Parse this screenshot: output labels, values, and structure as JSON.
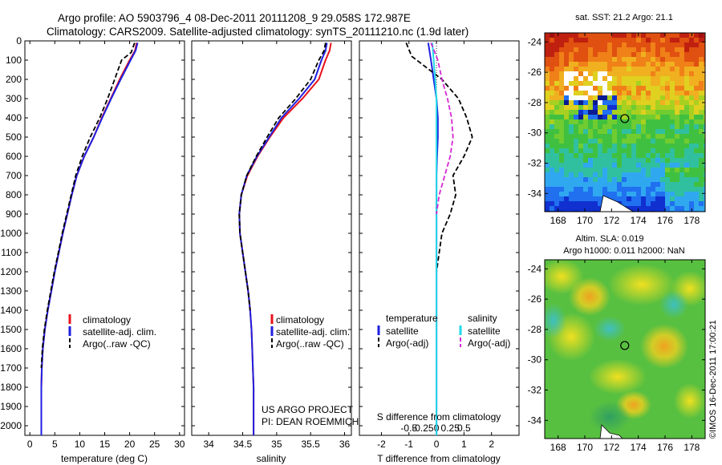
{
  "header": {
    "title_line1": "Argo profile: AO 5903796_4 08-Dec-2011 20111208_9 29.058S 172.987E",
    "title_line2": "Climatology: CARS2009. Satellite-adjusted climatology: synTS_20111210.nc (1.9d later)"
  },
  "credits": {
    "project": "US ARGO PROJECT",
    "pi": "PI: DEAN ROEMMICH",
    "side_text": "©IMOS 16-Dec-2011 17:00:21"
  },
  "colors": {
    "climatology": "#e8121b",
    "satellite": "#1f1fe0",
    "argo": "#000000",
    "salinity_satellite": "#22d8e8",
    "salinity_argo": "#d428d4"
  },
  "depth_ticks": [
    0,
    100,
    200,
    300,
    400,
    500,
    600,
    700,
    800,
    900,
    1000,
    1100,
    1200,
    1300,
    1400,
    1500,
    1600,
    1700,
    1800,
    1900,
    2000
  ],
  "chart_data": [
    {
      "id": "temperature",
      "type": "line",
      "xlabel": "temperature (deg C)",
      "ylabel": "",
      "xlim": [
        -1,
        31
      ],
      "ylim": [
        2050,
        0
      ],
      "xticks": [
        0,
        5,
        10,
        15,
        20,
        25,
        30
      ],
      "legend": [
        "climatology",
        "satellite-adj. clim.",
        "Argo(..raw -QC)"
      ],
      "legend_position": "bottom-right",
      "series": [
        {
          "name": "climatology",
          "style": "solid",
          "x": [
            21.4,
            21.1,
            20.0,
            18.0,
            16.2,
            14.4,
            12.8,
            10.9,
            9.4,
            8.4,
            7.5,
            6.6,
            5.8,
            5.0,
            4.3,
            3.6,
            3.0,
            2.6,
            2.4,
            2.3,
            2.3
          ],
          "y": [
            10,
            50,
            100,
            200,
            300,
            400,
            500,
            600,
            700,
            800,
            900,
            1000,
            1100,
            1200,
            1300,
            1400,
            1500,
            1600,
            1700,
            1800,
            2050
          ]
        },
        {
          "name": "satellite-adj. clim.",
          "style": "solid",
          "x": [
            21.6,
            21.2,
            20.2,
            18.2,
            16.3,
            14.5,
            12.8,
            10.9,
            9.4,
            8.4,
            7.5,
            6.6,
            5.8,
            5.0,
            4.3,
            3.6,
            3.0,
            2.6,
            2.4,
            2.3,
            2.3
          ],
          "y": [
            10,
            50,
            100,
            200,
            300,
            400,
            500,
            600,
            700,
            800,
            900,
            1000,
            1100,
            1200,
            1300,
            1400,
            1500,
            1600,
            1700,
            1800,
            2050
          ]
        },
        {
          "name": "Argo(..raw -QC)",
          "style": "dashed",
          "x": [
            21.0,
            20.3,
            18.4,
            17.0,
            15.6,
            14.0,
            12.1,
            10.5,
            9.2,
            8.3,
            7.4,
            6.5,
            5.7,
            4.9,
            4.2,
            3.5,
            2.9,
            2.5,
            2.3
          ],
          "y": [
            10,
            60,
            100,
            200,
            300,
            400,
            500,
            600,
            700,
            800,
            900,
            1000,
            1100,
            1200,
            1300,
            1400,
            1500,
            1600,
            1700
          ]
        }
      ]
    },
    {
      "id": "salinity",
      "type": "line",
      "xlabel": "salinity",
      "ylabel": "",
      "xlim": [
        33.75,
        36.1
      ],
      "ylim": [
        2050,
        0
      ],
      "xticks": [
        34,
        34.5,
        35,
        35.5,
        36
      ],
      "legend": [
        "climatology",
        "satellite-adj. clim.",
        "Argo(..raw -QC)"
      ],
      "legend_position": "bottom-right",
      "series": [
        {
          "name": "climatology",
          "style": "solid",
          "x": [
            35.8,
            35.78,
            35.72,
            35.62,
            35.38,
            35.1,
            34.9,
            34.72,
            34.57,
            34.48,
            34.45,
            34.46,
            34.5,
            34.54,
            34.58,
            34.61,
            34.63,
            34.64,
            34.65,
            34.66,
            34.66
          ],
          "y": [
            10,
            50,
            100,
            200,
            300,
            400,
            500,
            600,
            700,
            800,
            900,
            1000,
            1100,
            1200,
            1300,
            1400,
            1500,
            1600,
            1700,
            1800,
            2050
          ]
        },
        {
          "name": "satellite-adj. clim.",
          "style": "solid",
          "x": [
            35.74,
            35.72,
            35.66,
            35.56,
            35.33,
            35.07,
            34.89,
            34.71,
            34.56,
            34.48,
            34.45,
            34.46,
            34.5,
            34.54,
            34.58,
            34.61,
            34.63,
            34.64,
            34.65,
            34.66,
            34.66
          ],
          "y": [
            10,
            50,
            100,
            200,
            300,
            400,
            500,
            600,
            700,
            800,
            900,
            1000,
            1100,
            1200,
            1300,
            1400,
            1500,
            1600,
            1700,
            1800,
            2050
          ]
        },
        {
          "name": "Argo(..raw -QC)",
          "style": "dashed",
          "x": [
            35.72,
            35.7,
            35.62,
            35.5,
            35.28,
            35.03,
            34.86,
            34.7,
            34.56,
            34.48,
            34.45,
            34.46,
            34.5,
            34.54,
            34.58,
            34.61
          ],
          "y": [
            10,
            50,
            100,
            200,
            300,
            400,
            500,
            600,
            700,
            800,
            900,
            1000,
            1100,
            1200,
            1300,
            1400
          ]
        }
      ]
    },
    {
      "id": "difference",
      "type": "line",
      "xlabel": "T difference from climatology",
      "xlabel_top": "S difference from climatology",
      "xlim": [
        -2.8,
        3
      ],
      "ylim": [
        2050,
        0
      ],
      "xticks": [
        -2,
        -1,
        0,
        1,
        2
      ],
      "s_xticks_labels": [
        "-0.5",
        "-0.25",
        "0",
        "0.25",
        "0.5"
      ],
      "legend_headers": [
        "temperature",
        "salinity"
      ],
      "legend": [
        "satellite",
        "Argo(-adj)",
        "satellite",
        "Argo(-adj)"
      ],
      "legend_position": "bottom",
      "series": [
        {
          "name": "temperature satellite",
          "style": "solid",
          "x": [
            -0.3,
            -0.2,
            -0.1,
            0.0,
            0.05,
            0.05,
            0.02,
            0.0,
            0.0,
            0.0,
            0.0,
            0.0,
            0.0,
            0.0,
            0.0,
            0.0,
            0.0,
            0.0,
            0.0,
            0.0,
            0.0
          ],
          "y": [
            10,
            100,
            200,
            300,
            400,
            500,
            600,
            700,
            800,
            900,
            1000,
            1100,
            1200,
            1300,
            1400,
            1500,
            1600,
            1700,
            1800,
            1900,
            2050
          ]
        },
        {
          "name": "temperature Argo(-adj)",
          "style": "dashed",
          "x": [
            -1.1,
            -0.9,
            0.2,
            0.8,
            1.1,
            1.3,
            1.0,
            0.6,
            0.7,
            0.5,
            0.2,
            0.1,
            0.0
          ],
          "y": [
            10,
            80,
            200,
            300,
            400,
            500,
            600,
            700,
            800,
            900,
            1000,
            1100,
            1200
          ]
        },
        {
          "name": "salinity satellite",
          "style": "solid",
          "x": [
            -0.15,
            -0.1,
            -0.05,
            0.0,
            0.0,
            0.0,
            0.0,
            0.0,
            0.0,
            0.0,
            0.0,
            0.0,
            0.0,
            0.0,
            0.0,
            0.0,
            0.0,
            0.0,
            0.0
          ],
          "y": [
            10,
            100,
            200,
            300,
            400,
            500,
            600,
            700,
            800,
            900,
            1000,
            1200,
            1400,
            1600,
            1700,
            1800,
            1900,
            2000,
            2050
          ]
        },
        {
          "name": "salinity Argo(-adj)",
          "style": "dashed",
          "x": [
            -0.2,
            0.05,
            0.2,
            0.4,
            0.55,
            0.6,
            0.5,
            0.3,
            0.1,
            0.0
          ],
          "y": [
            10,
            100,
            200,
            300,
            400,
            500,
            600,
            700,
            800,
            900
          ]
        }
      ]
    },
    {
      "id": "sst_map",
      "type": "heatmap",
      "title": "sat. SST: 21.2 Argo: 21.1",
      "xlim": [
        167,
        179
      ],
      "ylim": [
        -35.2,
        -23.4
      ],
      "xticks": [
        168,
        170,
        172,
        174,
        176,
        178
      ],
      "yticks": [
        -24,
        -26,
        -28,
        -30,
        -32,
        -34
      ],
      "marker": {
        "lon": 172.987,
        "lat": -29.058
      }
    },
    {
      "id": "sla_map",
      "type": "heatmap",
      "title_line1": "Altim. SLA: 0.019",
      "title_line2": "Argo h1000: 0.011 h2000: NaN",
      "xlim": [
        167,
        179
      ],
      "ylim": [
        -35.2,
        -23.4
      ],
      "xticks": [
        168,
        170,
        172,
        174,
        176,
        178
      ],
      "yticks": [
        -24,
        -26,
        -28,
        -30,
        -32,
        -34
      ],
      "marker": {
        "lon": 172.987,
        "lat": -29.058
      }
    }
  ]
}
